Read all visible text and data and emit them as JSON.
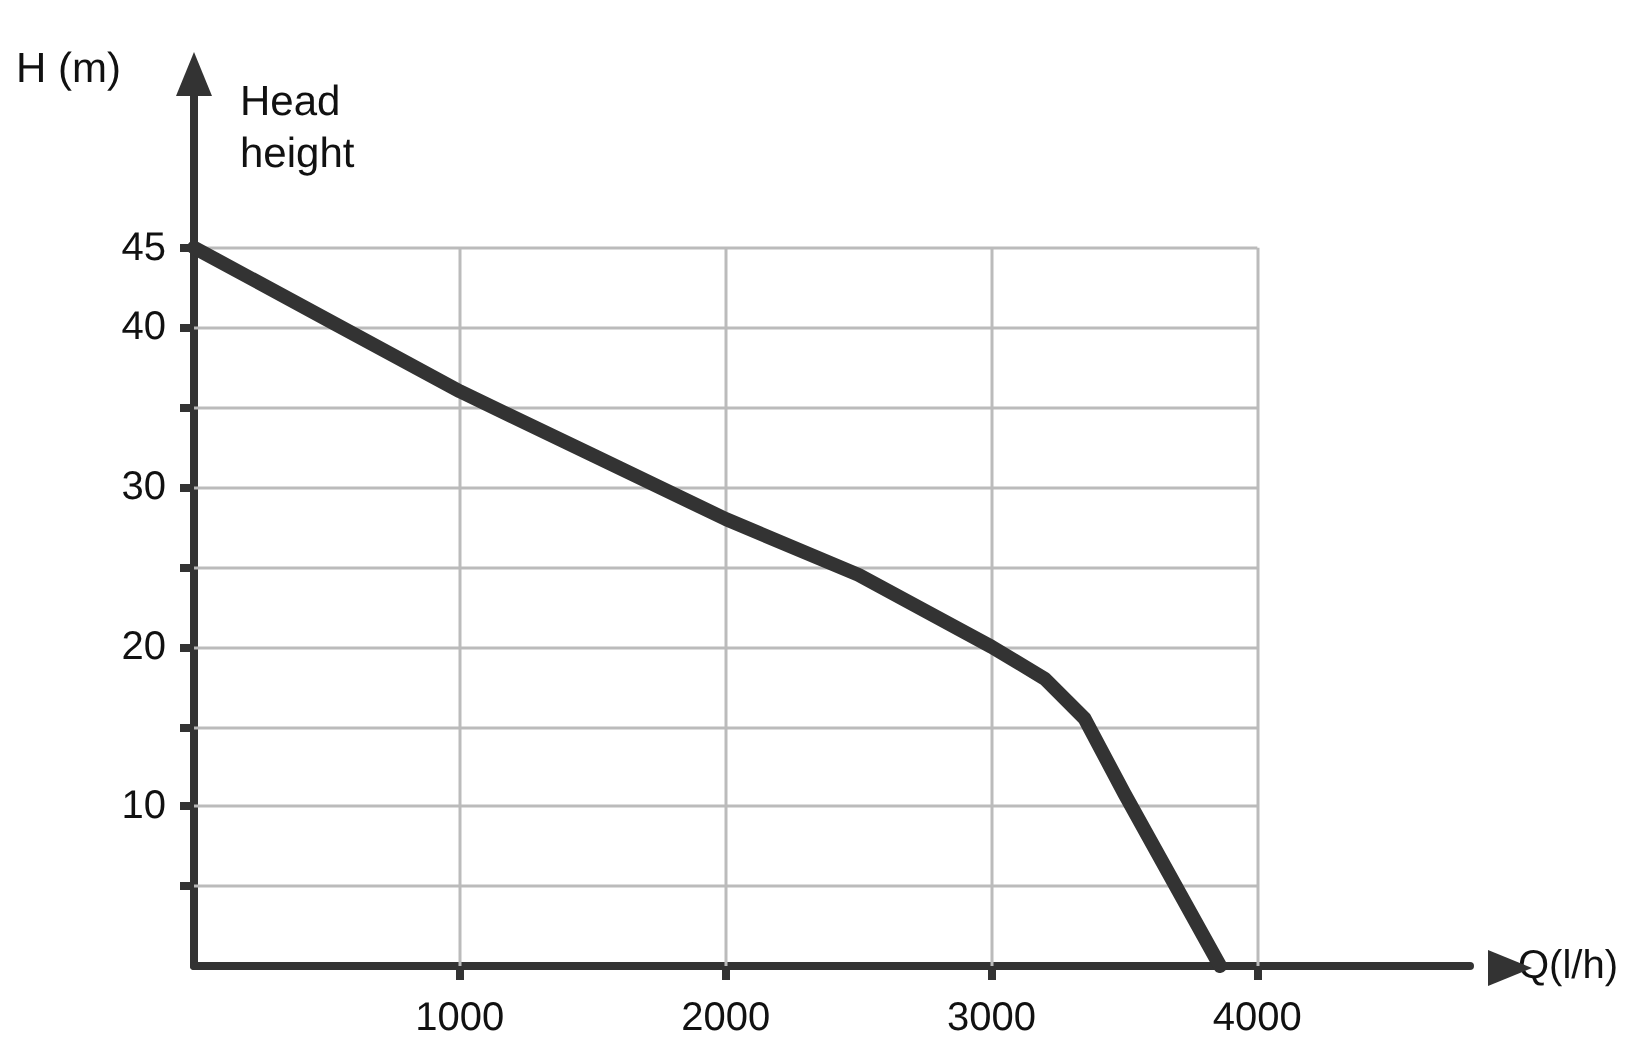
{
  "chart_data": {
    "type": "line",
    "xlabel": "Q(l/h)",
    "ylabel": "H (m)",
    "annotations": [
      "Head height"
    ],
    "x": [
      0,
      500,
      1000,
      1500,
      2000,
      2500,
      3000,
      3200,
      3350,
      3500,
      3860
    ],
    "series": [
      {
        "color": "#333333",
        "values": [
          45,
          40.5,
          36,
          32,
          28,
          24.5,
          20,
          18,
          15.5,
          10.8,
          0
        ]
      }
    ],
    "xlim": [
      0,
      4800
    ],
    "xticks": [
      1000,
      2000,
      3000,
      4000
    ],
    "ylim": [
      0,
      55
    ],
    "yticks": [
      {
        "value": 5,
        "label": null
      },
      10,
      {
        "value": 15,
        "label": null
      },
      20,
      {
        "value": 25,
        "label": null
      },
      30,
      {
        "value": 35,
        "label": null
      },
      40,
      45
    ],
    "grid": true,
    "line_style": "solid"
  }
}
